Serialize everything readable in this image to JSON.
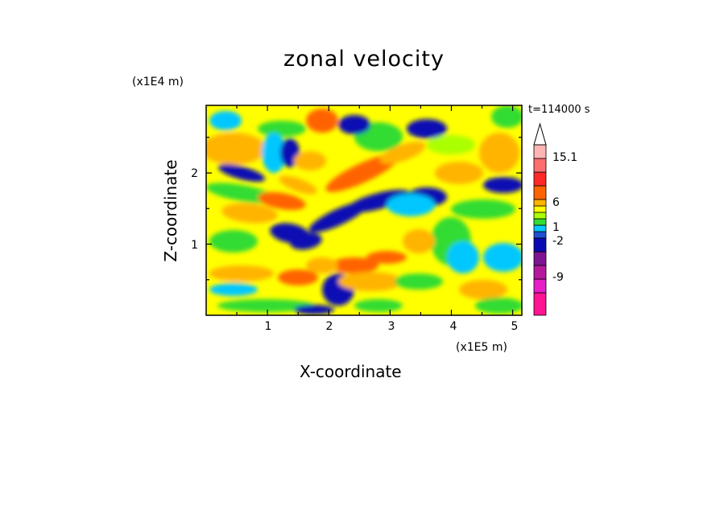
{
  "chart_data": {
    "type": "heatmap",
    "title": "zonal velocity",
    "xlabel": "X-coordinate",
    "ylabel": "Z-coordinate",
    "x_unit": "(x1E5 m)",
    "y_unit": "(x1E4 m)",
    "annotation": "t=114000 s",
    "xlim": [
      0,
      5.15
    ],
    "ylim": [
      0,
      2.95
    ],
    "x_ticks": [
      "1",
      "2",
      "3",
      "4",
      "5"
    ],
    "y_ticks": [
      "1",
      "2"
    ],
    "colorbar": {
      "labels": [
        "15.1",
        "6",
        "1",
        "-2",
        "-9"
      ],
      "levels": [
        -15,
        -12,
        -9,
        -6,
        -3,
        -2,
        -1,
        0,
        1,
        2,
        3,
        6,
        9,
        12,
        15.1
      ],
      "colors": [
        "#ff1493",
        "#e61ec8",
        "#b4199b",
        "#7d1491",
        "#0a0ab4",
        "#1e50d2",
        "#00c8ff",
        "#32dc32",
        "#aaff00",
        "#ffff00",
        "#ffb400",
        "#ff6400",
        "#ff2828",
        "#ff6e6e",
        "#ffb4b4"
      ]
    }
  }
}
